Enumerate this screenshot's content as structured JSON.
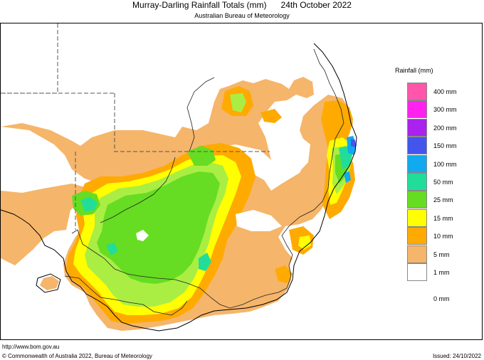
{
  "title": "Murray-Darling Rainfall Totals (mm)      24th October 2022",
  "subtitle": "Australian Bureau of Meteorology",
  "legend": {
    "title": "Rainfall (mm)",
    "items": [
      {
        "label": "400 mm",
        "color": "#ff55aa"
      },
      {
        "label": "300 mm",
        "color": "#ff22ee"
      },
      {
        "label": "200 mm",
        "color": "#aa22ee"
      },
      {
        "label": "150 mm",
        "color": "#4455ee"
      },
      {
        "label": "100 mm",
        "color": "#11aaee"
      },
      {
        "label": "50 mm",
        "color": "#22dd99"
      },
      {
        "label": "25 mm",
        "color": "#66dd22"
      },
      {
        "label": "15 mm",
        "color": "#ffff00"
      },
      {
        "label": "10 mm",
        "color": "#ffaa00"
      },
      {
        "label": "5 mm",
        "color": "#f5b56a"
      },
      {
        "label": "1 mm",
        "color": "#ffffff"
      },
      {
        "label": "0 mm",
        "color": null
      }
    ]
  },
  "footer": {
    "url": "http://www.bom.gov.au",
    "copyright": "© Commonwealth of Australia 2022, Bureau of Meteorology",
    "issued": "Issued: 24/10/2022"
  }
}
